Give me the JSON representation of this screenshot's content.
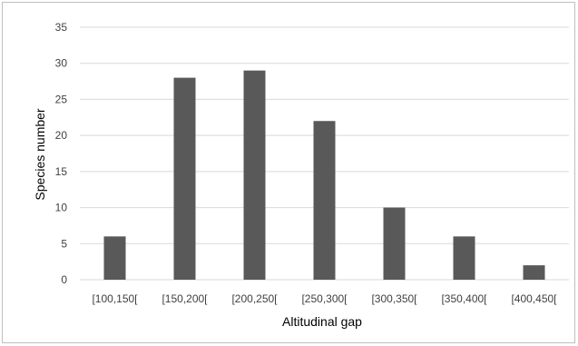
{
  "chart_data": {
    "type": "bar",
    "title": "",
    "xlabel": "Altitudinal gap",
    "ylabel": "Species number",
    "categories": [
      "[100,150[",
      "[150,200[",
      "[200,250[",
      "[250,300[",
      "[300,350[",
      "[350,400[",
      "[400,450["
    ],
    "values": [
      6,
      28,
      29,
      22,
      10,
      6,
      2
    ],
    "ylim": [
      0,
      35
    ],
    "yticks": [
      "0",
      "5",
      "10",
      "15",
      "20",
      "25",
      "30",
      "35"
    ],
    "grid": true,
    "legend": "none",
    "bar_color": "#595959",
    "grid_color": "#d9d9d9"
  }
}
